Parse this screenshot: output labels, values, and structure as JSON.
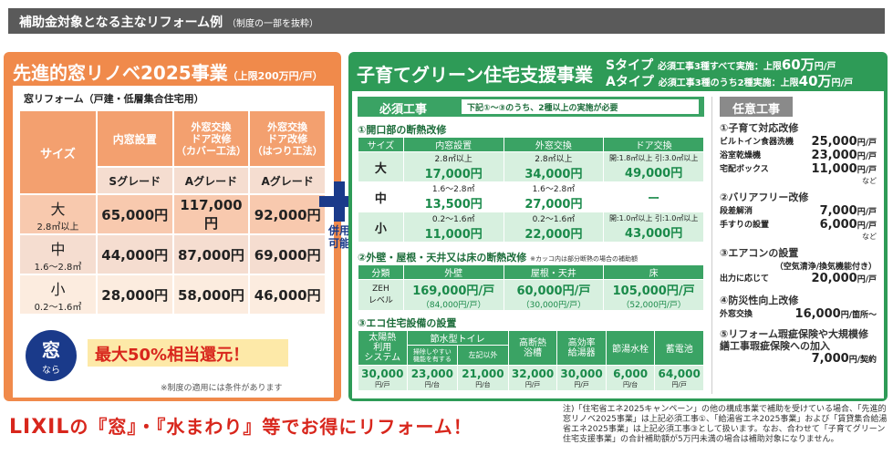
{
  "header": {
    "title": "補助金対象となる主なリフォーム例",
    "sub": "（制度の一部を抜粋）"
  },
  "left": {
    "title": "先進的窓リノベ2025事業",
    "limit": "（上限200万円/戸）",
    "subtitle": "窓リフォーム（戸建・低層集合住宅用）",
    "col_size": "サイズ",
    "cols": [
      "内窓設置",
      "外窓交換\nドア改修\n（カバー工法）",
      "外窓交換\nドア改修\n（はつり工法）"
    ],
    "grades": [
      "Sグレード",
      "Aグレード",
      "Aグレード"
    ],
    "rows": [
      {
        "size": "大",
        "range": "2.8㎡以上",
        "values": [
          "65,000円",
          "117,000円",
          "92,000円"
        ]
      },
      {
        "size": "中",
        "range": "1.6～2.8㎡",
        "values": [
          "44,000円",
          "87,000円",
          "69,000円"
        ]
      },
      {
        "size": "小",
        "range": "0.2～1.6㎡",
        "values": [
          "28,000円",
          "58,000円",
          "46,000円"
        ]
      }
    ],
    "badge_top": "窓",
    "badge_bottom": "なら",
    "promo": "最大50%相当還元！",
    "note": "※制度の適用には条件があります"
  },
  "combo": {
    "l1": "併用",
    "l2": "可能"
  },
  "right": {
    "title": "子育てグリーン住宅支援事業",
    "s_type": "Sタイプ",
    "s_desc": "必須工事3種すべて実施：上限",
    "s_amt": "60万",
    "a_type": "Aタイプ",
    "a_desc": "必須工事3種のうち2種実施：上限",
    "a_amt": "40万",
    "per": "円/戸",
    "hissu": "必須工事",
    "hissu_note": "下記①～③のうち、2種以上の実施が必要",
    "s1": "①開口部の断熱改修",
    "s1_cols": [
      "サイズ",
      "内窓設置",
      "外窓交換",
      "ドア交換"
    ],
    "s1_rows": [
      {
        "size": "大",
        "c": [
          [
            "2.8㎡以上",
            "17,000円"
          ],
          [
            "2.8㎡以上",
            "34,000円"
          ],
          [
            "開:1.8㎡以上 引:3.0㎡以上",
            "49,000円"
          ]
        ]
      },
      {
        "size": "中",
        "c": [
          [
            "1.6～2.8㎡",
            "13,500円"
          ],
          [
            "1.6～2.8㎡",
            "27,000円"
          ],
          [
            "",
            "ー"
          ]
        ]
      },
      {
        "size": "小",
        "c": [
          [
            "0.2～1.6㎡",
            "11,000円"
          ],
          [
            "0.2～1.6㎡",
            "22,000円"
          ],
          [
            "開:1.0㎡以上 引:1.0㎡以上",
            "43,000円"
          ]
        ]
      }
    ],
    "s2": "②外壁・屋根・天井又は床の断熱改修",
    "s2_note": "※カッコ内は部分断熱の場合の補助額",
    "s2_cols": [
      "分類",
      "外壁",
      "屋根・天井",
      "床"
    ],
    "s2_row_label": "ZEH\nレベル",
    "s2_vals": [
      [
        "169,000円/戸",
        "（84,000円/戸）"
      ],
      [
        "60,000円/戸",
        "（30,000円/戸）"
      ],
      [
        "105,000円/戸",
        "（52,000円/戸）"
      ]
    ],
    "s3": "③エコ住宅設備の設置",
    "s3_cols": [
      "太陽熱\n利用\nシステム",
      "掃除しやすい\n機能を有する",
      "左記以外",
      "高断熱\n浴槽",
      "高効率\n給湯器",
      "節湯水栓",
      "蓄電池"
    ],
    "s3_group": "節水型トイレ",
    "s3_vals": [
      [
        "30,000",
        "円/戸"
      ],
      [
        "23,000",
        "円/台"
      ],
      [
        "21,000",
        "円/台"
      ],
      [
        "32,000",
        "円/戸"
      ],
      [
        "30,000",
        "円/戸"
      ],
      [
        "6,000",
        "円/台"
      ],
      [
        "64,000",
        "円/戸"
      ]
    ],
    "nini": "任意工事",
    "o1": "①子育て対応改修",
    "o1_items": [
      [
        "ビルトイン食器洗機",
        "25,000"
      ],
      [
        "浴室乾燥機",
        "23,000"
      ],
      [
        "宅配ボックス",
        "11,000"
      ]
    ],
    "o2": "②バリアフリー改修",
    "o2_items": [
      [
        "段差解消",
        "7,000"
      ],
      [
        "手すりの設置",
        "6,000"
      ]
    ],
    "o3": "③エアコンの設置",
    "o3_sub": "（空気清浄/換気機能付き）",
    "o3_item": [
      "出力に応じて",
      "20,000"
    ],
    "o4": "④防災性向上改修",
    "o4_item": [
      "外窓交換",
      "16,000",
      "円/箇所～"
    ],
    "o5": "⑤リフォーム瑕疵保険や大規模修繕工事瑕疵保険への加入",
    "o5_val": "7,000",
    "o5_unit": "円/契約",
    "unit_ko": "円/戸",
    "nado": "など"
  },
  "footer": {
    "brand": "LIXIL",
    "tagline": "の『窓』・『水まわり』等でお得にリフォーム！",
    "note": "注)「住宅省エネ2025キャンペーン」の他の構成事業で補助を受けている場合、「先進的窓リノベ2025事業」は上記必須工事①、「給湯省エネ2025事業」および「賃貸集合給湯省エネ2025事業」は上記必須工事③として扱います。なお、合わせて「子育てグリーン住宅支援事業」の合計補助額が5万円未満の場合は補助対象になりません。"
  },
  "colors": {
    "orange": "#f08a4b",
    "green": "#2e9b57",
    "red": "#d8261c",
    "navy": "#1a3a8a"
  }
}
